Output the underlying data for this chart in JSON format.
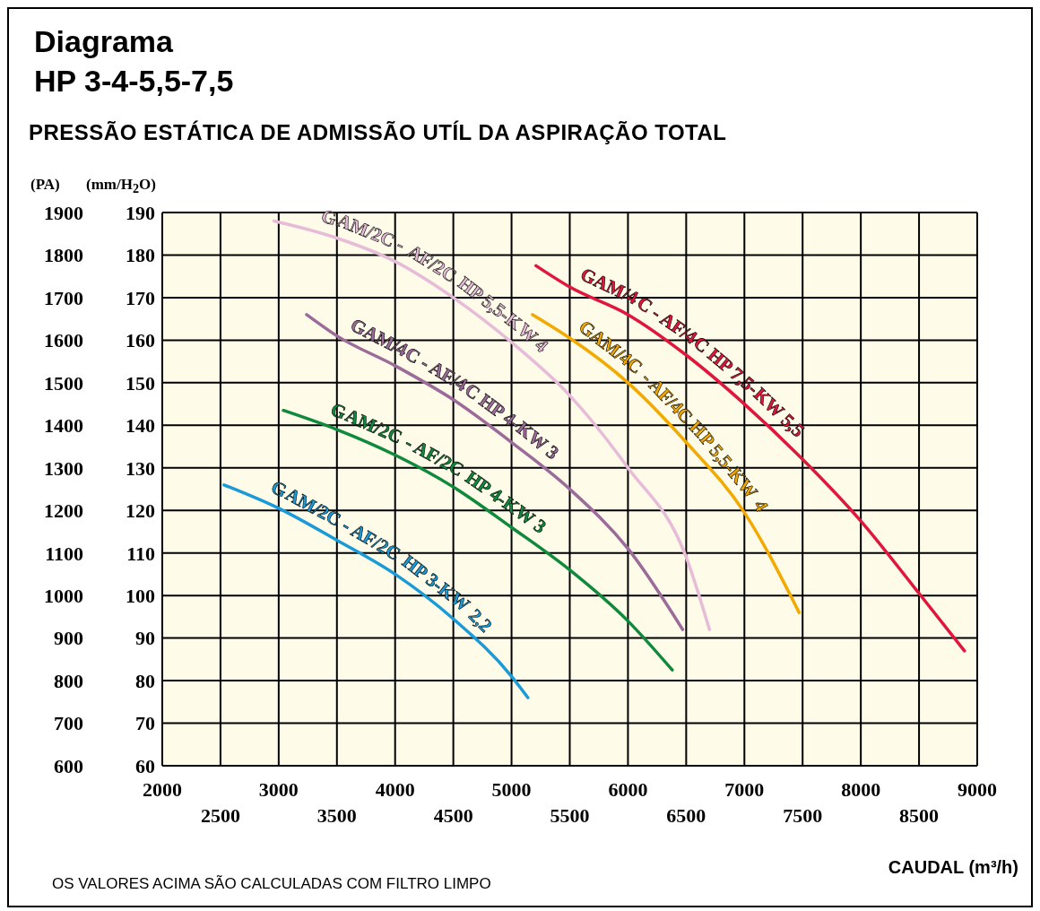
{
  "chart_data": {
    "type": "line",
    "title": "Diagrama HP 3-4-5,5-7,5",
    "subtitle": "PRESSÃO ESTÁTICA DE ADMISSÃO UTÍL DA ASPIRAÇÃO TOTAL",
    "ylabel": "(mm/H$_{2}$O)",
    "y2label": "(PA)",
    "xlabel": "CAUDAL  (m³/h)",
    "annotations": [
      "OS VALORES ACIMA SÃO CALCULADAS COM FILTRO LIMPO"
    ],
    "xlim": [
      2000,
      9000
    ],
    "xticks": [
      2000,
      3000,
      4000,
      5000,
      6000,
      7000,
      8000,
      9000
    ],
    "x2lim": [
      2000,
      9000
    ],
    "x2ticks": [
      2500,
      3500,
      4500,
      5500,
      6500,
      7500,
      8500
    ],
    "ylim": [
      60,
      190
    ],
    "yticks": [
      60,
      70,
      80,
      90,
      100,
      110,
      120,
      130,
      140,
      150,
      160,
      170,
      180,
      190
    ],
    "y2lim": [
      600,
      1900
    ],
    "y2ticks": [
      600,
      700,
      800,
      900,
      1000,
      1100,
      1200,
      1300,
      1400,
      1500,
      1600,
      1700,
      1800,
      1900
    ],
    "grid": true,
    "legend": false,
    "marker": "none",
    "line_style": "solid",
    "series": [
      {
        "name": "GAM/2C - AF/2C HP 3-KW 2,2",
        "color": "#1a9ad6",
        "x": [
          2530,
          3000,
          3500,
          4000,
          4500,
          5000,
          5140
        ],
        "values": [
          126,
          120.5,
          113,
          105,
          94.5,
          81,
          76
        ]
      },
      {
        "name": "GAM/2C - AF/2C HP 4-KW 3",
        "color": "#0f8a3c",
        "x": [
          3040,
          3500,
          4000,
          4500,
          5000,
          5500,
          6000,
          6380
        ],
        "values": [
          143.5,
          139,
          133,
          125.5,
          116,
          106,
          94,
          82.5
        ]
      },
      {
        "name": "GAM/4C - AF/4C HP 4-KW 3",
        "color": "#9b6b9a",
        "x": [
          3240,
          3500,
          4000,
          4500,
          5000,
          5500,
          6000,
          6470
        ],
        "values": [
          166,
          161,
          154,
          146,
          136,
          125,
          111,
          92
        ]
      },
      {
        "name": "GAM/2C - AF/2C HP 5,5-KW 4",
        "color": "#e6bcd9",
        "x": [
          2960,
          3500,
          4000,
          4500,
          5000,
          5500,
          6000,
          6500,
          6700
        ],
        "values": [
          188,
          184,
          178.5,
          170,
          159.5,
          147,
          130,
          109,
          92
        ]
      },
      {
        "name": "GAM/4C - AF/4C HP 5,5-KW 4",
        "color": "#f2a900",
        "x": [
          5180,
          5500,
          6000,
          6500,
          7000,
          7470
        ],
        "values": [
          166,
          160.5,
          150,
          136,
          119.5,
          96
        ]
      },
      {
        "name": "GAM/4C - AF/4C HP 7,5-KW 5,5",
        "color": "#e0163c",
        "x": [
          5210,
          5500,
          6000,
          6500,
          7000,
          7500,
          8000,
          8500,
          8890
        ],
        "values": [
          177.5,
          172.5,
          166,
          156.5,
          145,
          132,
          117.5,
          100.5,
          87
        ]
      }
    ]
  }
}
